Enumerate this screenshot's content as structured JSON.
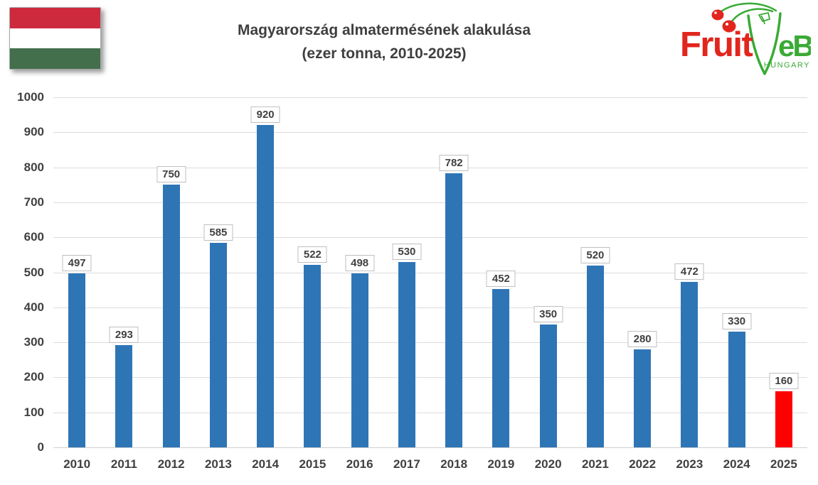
{
  "header": {
    "title_line1": "Magyarország almatermésének alakulása",
    "title_line2": "(ezer tonna, 2010-2025)",
    "flag": {
      "label": "hungary-flag",
      "colors": {
        "red": "#cd2a3e",
        "white": "#ffffff",
        "green": "#436f4d"
      }
    },
    "logo": {
      "fruit_text": "Fruit",
      "eb_text": "eB",
      "hungary_text": "HUNGARY",
      "red": "#e2261d",
      "dark_red": "#b51414",
      "green": "#3aaa35"
    }
  },
  "chart_data": {
    "type": "bar",
    "title": "Magyarország almatermésének alakulása",
    "subtitle": "(ezer tonna, 2010-2025)",
    "categories": [
      "2010",
      "2011",
      "2012",
      "2013",
      "2014",
      "2015",
      "2016",
      "2017",
      "2018",
      "2019",
      "2020",
      "2021",
      "2022",
      "2023",
      "2024",
      "2025"
    ],
    "values": [
      497,
      293,
      750,
      585,
      920,
      522,
      498,
      530,
      782,
      452,
      350,
      520,
      280,
      472,
      330,
      160
    ],
    "ylim": [
      0,
      1000
    ],
    "ytick_step": 100,
    "grid": true,
    "data_labels": true,
    "legend": "none",
    "bar_colors": {
      "default": "#2e75b6",
      "highlight": "#ff0000"
    },
    "highlight_index": 15,
    "text_color": "#404040",
    "gridline_color": "#dcdcdc"
  }
}
